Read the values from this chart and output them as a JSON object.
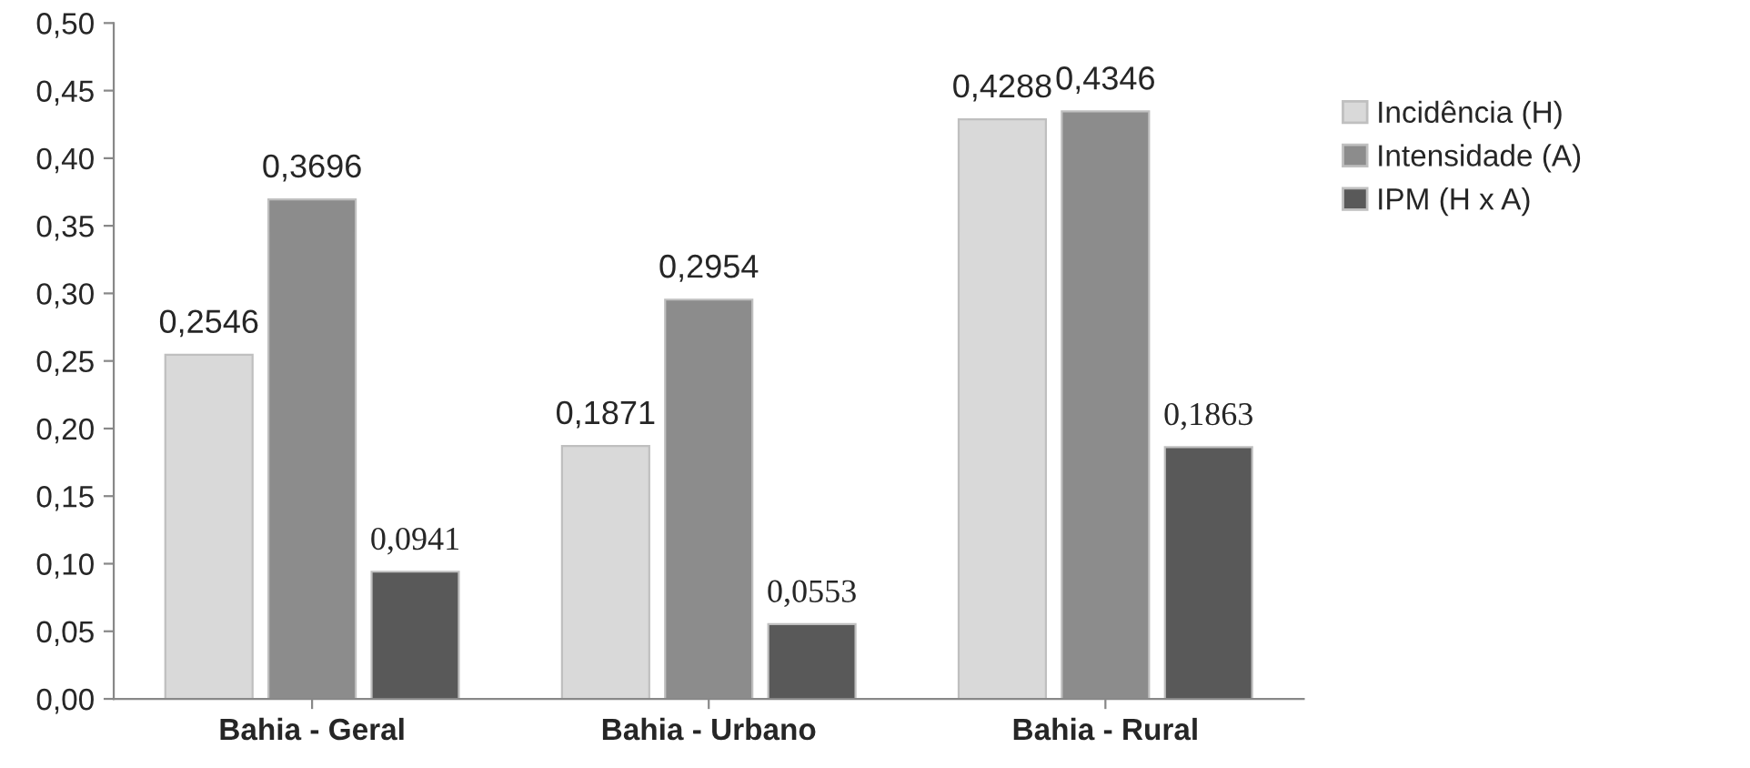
{
  "chart_data": {
    "type": "bar",
    "categories": [
      "Bahia - Geral",
      "Bahia - Urbano",
      "Bahia - Rural"
    ],
    "series": [
      {
        "name": "Incidência (H)",
        "color": "#d9d9d9",
        "values": [
          0.2546,
          0.1871,
          0.4288
        ],
        "value_labels": [
          "0,2546",
          "0,1871",
          "0,4288"
        ]
      },
      {
        "name": "Intensidade (A)",
        "color": "#8c8c8c",
        "values": [
          0.3696,
          0.2954,
          0.4346
        ],
        "value_labels": [
          "0,3696",
          "0,2954",
          "0,4346"
        ]
      },
      {
        "name": "IPM (H x A)",
        "color": "#595959",
        "values": [
          0.0941,
          0.0553,
          0.1863
        ],
        "value_labels": [
          "0,0941",
          "0,0553",
          "0,1863"
        ]
      }
    ],
    "ylim": [
      0,
      0.5
    ],
    "yticks": [
      {
        "value": 0,
        "label": "0,00"
      },
      {
        "value": 0.05,
        "label": "0,05"
      },
      {
        "value": 0.1,
        "label": "0,10"
      },
      {
        "value": 0.15,
        "label": "0,15"
      },
      {
        "value": 0.2,
        "label": "0,20"
      },
      {
        "value": 0.25,
        "label": "0,25"
      },
      {
        "value": 0.3,
        "label": "0,30"
      },
      {
        "value": 0.35,
        "label": "0,35"
      },
      {
        "value": 0.4,
        "label": "0,40"
      },
      {
        "value": 0.45,
        "label": "0,45"
      },
      {
        "value": 0.5,
        "label": "0,50"
      }
    ],
    "grid": false,
    "legend": "right"
  }
}
